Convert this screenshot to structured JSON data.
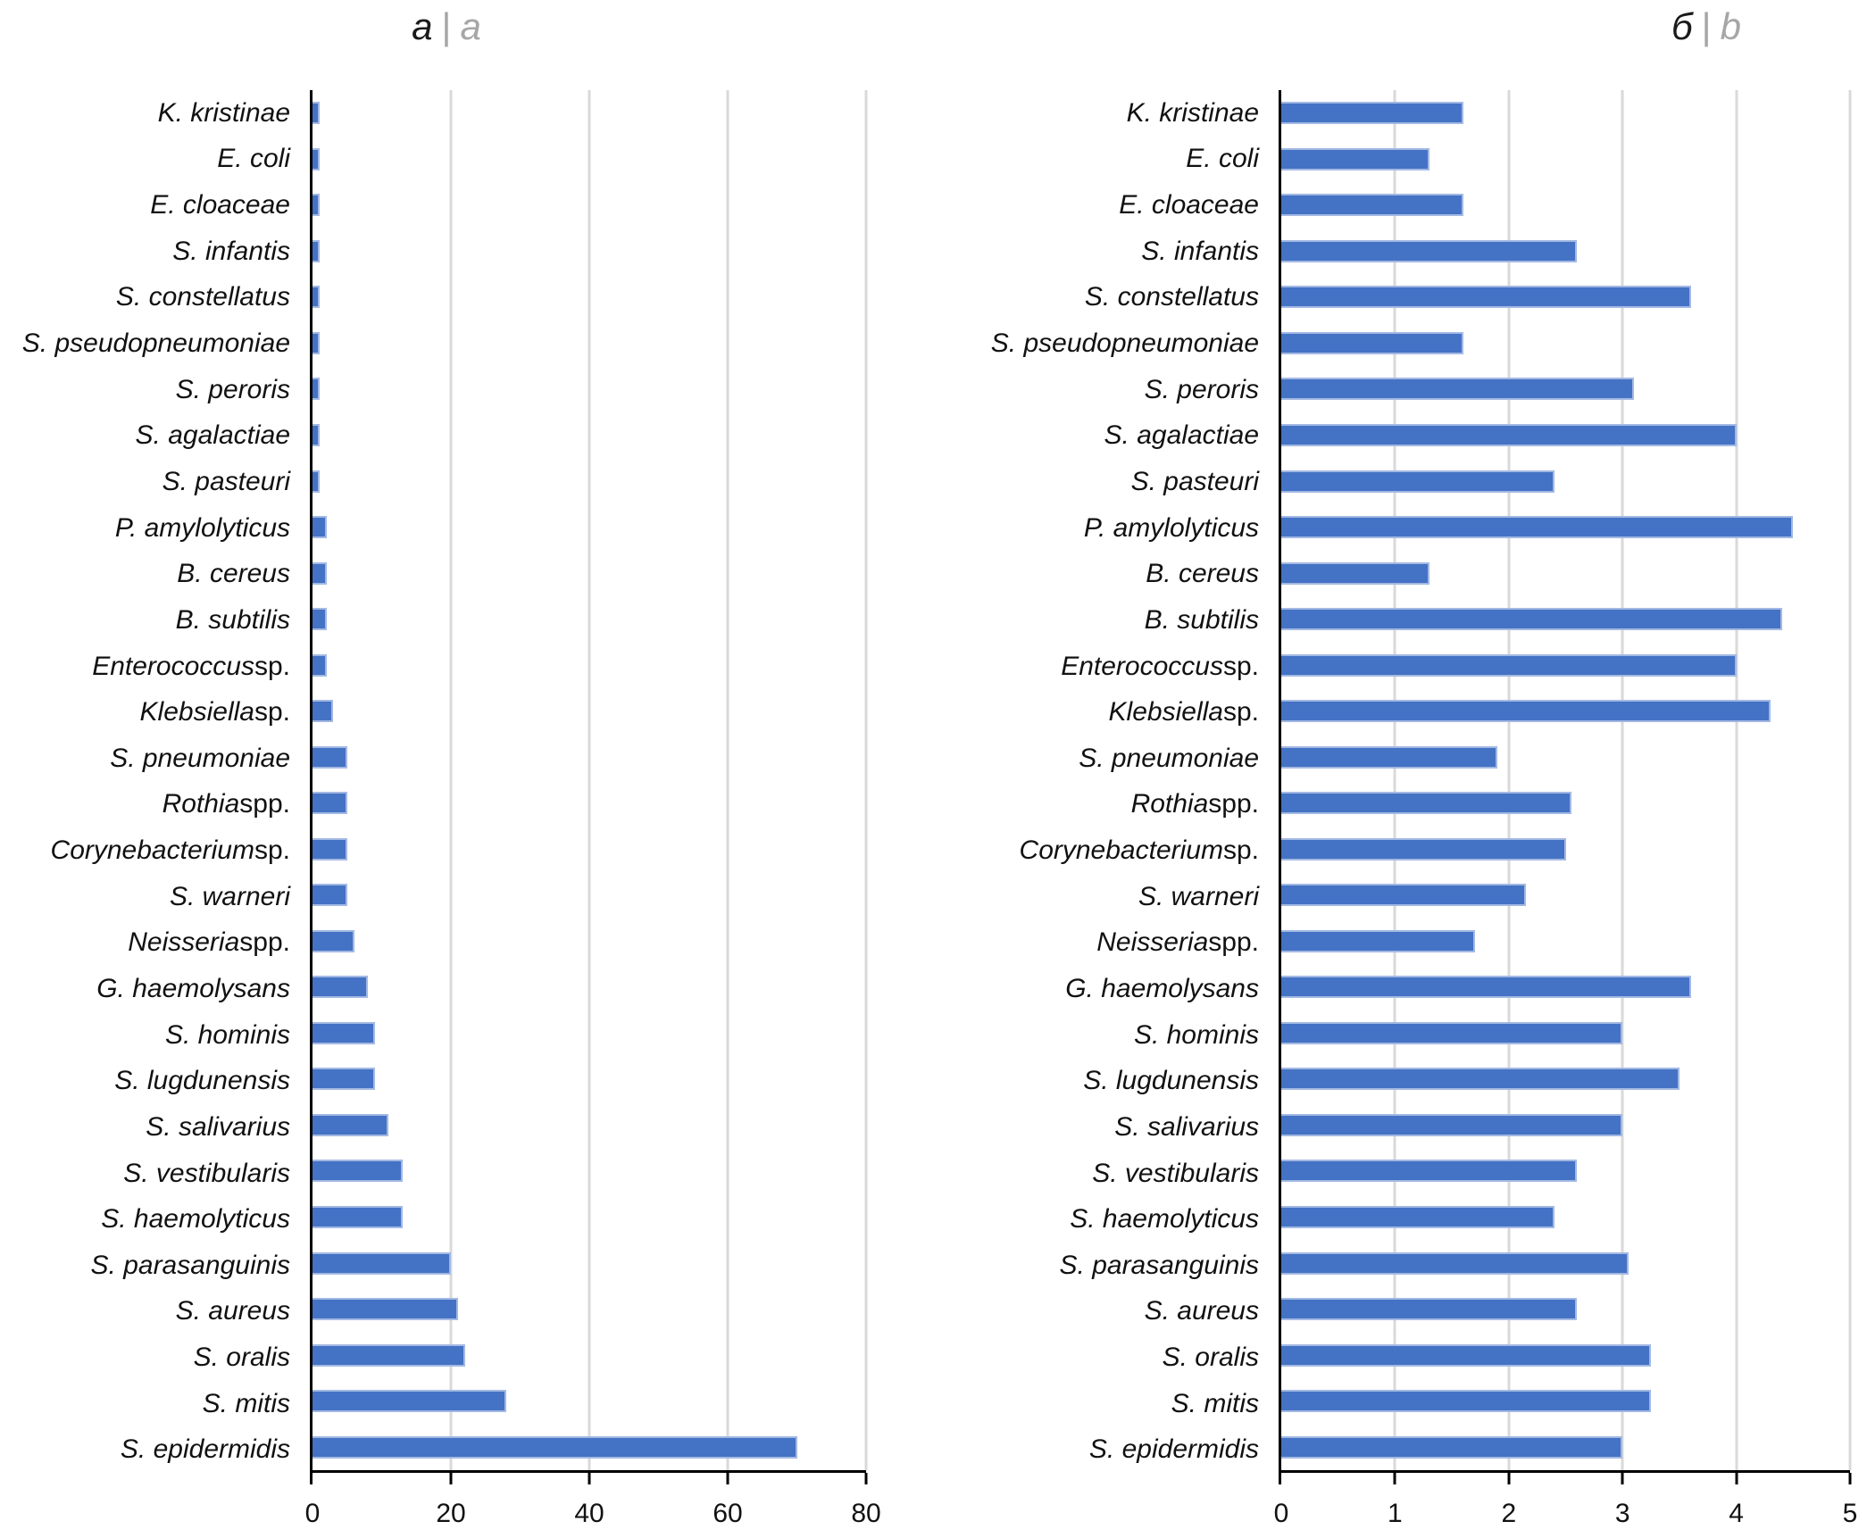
{
  "figure": {
    "description": "Two horizontal bar charts of microbial species",
    "background": "#ffffff"
  },
  "panels": [
    {
      "title_main": "а",
      "title_sep": "|",
      "title_alt": "a"
    },
    {
      "title_main": "б",
      "title_sep": "|",
      "title_alt": "b"
    }
  ],
  "categories_rich": [
    {
      "i": "K. kristinae",
      "r": ""
    },
    {
      "i": "E. coli",
      "r": ""
    },
    {
      "i": "E. cloaceae",
      "r": ""
    },
    {
      "i": "S. infantis",
      "r": ""
    },
    {
      "i": "S. constellatus",
      "r": ""
    },
    {
      "i": "S. pseudopneumoniae",
      "r": ""
    },
    {
      "i": "S. peroris",
      "r": ""
    },
    {
      "i": "S. agalactiae",
      "r": ""
    },
    {
      "i": "S. pasteuri",
      "r": ""
    },
    {
      "i": "P. amylolyticus",
      "r": ""
    },
    {
      "i": "B. cereus",
      "r": ""
    },
    {
      "i": "B. subtilis",
      "r": ""
    },
    {
      "i": "Enterococcus",
      "r": " sp."
    },
    {
      "i": "Klebsiella",
      "r": " sp."
    },
    {
      "i": "S. pneumoniae",
      "r": ""
    },
    {
      "i": "Rothia",
      "r": " spp."
    },
    {
      "i": "Corynebacterium",
      "r": " sp."
    },
    {
      "i": "S. warneri",
      "r": ""
    },
    {
      "i": "Neisseria",
      "r": " spp."
    },
    {
      "i": "G. haemolysans",
      "r": ""
    },
    {
      "i": "S. hominis",
      "r": ""
    },
    {
      "i": "S. lugdunensis",
      "r": ""
    },
    {
      "i": "S. salivarius",
      "r": ""
    },
    {
      "i": "S. vestibularis",
      "r": ""
    },
    {
      "i": "S. haemolyticus",
      "r": ""
    },
    {
      "i": "S. parasanguinis",
      "r": ""
    },
    {
      "i": "S. aureus",
      "r": ""
    },
    {
      "i": "S. oralis",
      "r": ""
    },
    {
      "i": "S. mitis",
      "r": ""
    },
    {
      "i": "S. epidermidis",
      "r": ""
    }
  ],
  "chart_data": [
    {
      "type": "bar",
      "orientation": "horizontal",
      "title": "а | a",
      "categories": [
        "K. kristinae",
        "E. coli",
        "E. cloaceae",
        "S. infantis",
        "S. constellatus",
        "S. pseudopneumoniae",
        "S. peroris",
        "S. agalactiae",
        "S. pasteuri",
        "P. amylolyticus",
        "B. cereus",
        "B. subtilis",
        "Enterococcus sp.",
        "Klebsiella sp.",
        "S. pneumoniae",
        "Rothia spp.",
        "Corynebacterium sp.",
        "S. warneri",
        "Neisseria spp.",
        "G. haemolysans",
        "S. hominis",
        "S. lugdunensis",
        "S. salivarius",
        "S. vestibularis",
        "S. haemolyticus",
        "S. parasanguinis",
        "S. aureus",
        "S. oralis",
        "S. mitis",
        "S. epidermidis"
      ],
      "values": [
        1,
        1,
        1,
        1,
        1,
        1,
        1,
        1,
        1,
        2,
        2,
        2,
        2,
        3,
        5,
        5,
        5,
        5,
        6,
        8,
        9,
        9,
        11,
        13,
        13,
        20,
        21,
        22,
        28,
        70
      ],
      "xlabel": "",
      "ylabel": "",
      "xlim": [
        0,
        80
      ],
      "xticks": [
        0,
        20,
        40,
        60,
        80
      ],
      "grid": "vertical",
      "legend": "none",
      "bar_color": "#4472C4"
    },
    {
      "type": "bar",
      "orientation": "horizontal",
      "title": "б | b",
      "categories": [
        "K. kristinae",
        "E. coli",
        "E. cloaceae",
        "S. infantis",
        "S. constellatus",
        "S. pseudopneumoniae",
        "S. peroris",
        "S. agalactiae",
        "S. pasteuri",
        "P. amylolyticus",
        "B. cereus",
        "B. subtilis",
        "Enterococcus sp.",
        "Klebsiella sp.",
        "S. pneumoniae",
        "Rothia spp.",
        "Corynebacterium sp.",
        "S. warneri",
        "Neisseria spp.",
        "G. haemolysans",
        "S. hominis",
        "S. lugdunensis",
        "S. salivarius",
        "S. vestibularis",
        "S. haemolyticus",
        "S. parasanguinis",
        "S. aureus",
        "S. oralis",
        "S. mitis",
        "S. epidermidis"
      ],
      "values": [
        1.6,
        1.3,
        1.6,
        2.6,
        3.6,
        1.6,
        3.1,
        4.0,
        2.4,
        4.5,
        1.3,
        4.4,
        4.0,
        4.3,
        1.9,
        2.55,
        2.5,
        2.15,
        1.7,
        3.6,
        3.0,
        3.5,
        3.0,
        2.6,
        2.4,
        3.05,
        2.6,
        3.25,
        3.25,
        3.0
      ],
      "xlabel": "",
      "ylabel": "",
      "xlim": [
        0,
        5
      ],
      "xticks": [
        0,
        1,
        2,
        3,
        4,
        5
      ],
      "grid": "vertical",
      "legend": "none",
      "bar_color": "#4472C4"
    }
  ],
  "colors": {
    "bar": "#4472C4",
    "bar_border": "#A3B9E3",
    "gridline": "#D9D9D9",
    "axis": "#000000",
    "title_secondary": "#A6A6A6"
  }
}
